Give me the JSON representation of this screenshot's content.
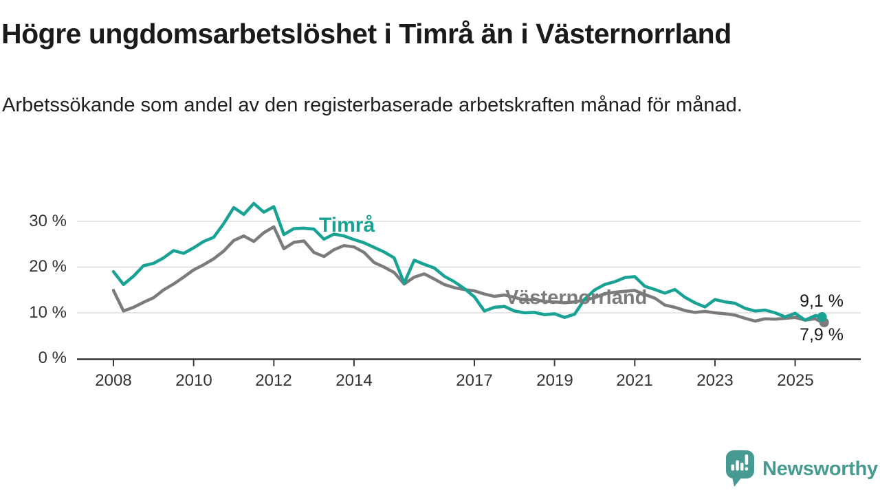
{
  "header": {
    "title": "Högre ungdomsarbetslöshet i Timrå än i Västernorrland",
    "subtitle": "Arbetssökande som andel av den registerbaserade arbetskraften månad för månad."
  },
  "chart_data": {
    "type": "line",
    "title": "Högre ungdomsarbetslöshet i Timrå än i Västernorrland",
    "subtitle": "Arbetssökande som andel av den registerbaserade arbetskraften månad för månad.",
    "xlabel": "",
    "ylabel": "",
    "y_unit": "%",
    "grid": "horizontal",
    "legend_position": "inline-labels",
    "x_range": [
      2007.85,
      2026.1
    ],
    "ylim": [
      0,
      36
    ],
    "y_tick_values": [
      0,
      10,
      20,
      30
    ],
    "y_tick_labels": [
      "0 %",
      "10 %",
      "20 %",
      "30 %"
    ],
    "x_tick_years": [
      2008,
      2010,
      2012,
      2014,
      2017,
      2019,
      2021,
      2023,
      2025
    ],
    "x_tick_labels": [
      "2008",
      "2010",
      "2012",
      "2014",
      "2017",
      "2019",
      "2021",
      "2023",
      "2025"
    ],
    "x": [
      2008.0,
      2008.25,
      2008.5,
      2008.75,
      2009.0,
      2009.25,
      2009.5,
      2009.75,
      2010.0,
      2010.25,
      2010.5,
      2010.75,
      2011.0,
      2011.25,
      2011.5,
      2011.75,
      2012.0,
      2012.25,
      2012.5,
      2012.75,
      2013.0,
      2013.25,
      2013.5,
      2013.75,
      2014.0,
      2014.25,
      2014.5,
      2014.75,
      2015.0,
      2015.25,
      2015.5,
      2015.75,
      2016.0,
      2016.25,
      2016.5,
      2016.75,
      2017.0,
      2017.25,
      2017.5,
      2017.75,
      2018.0,
      2018.25,
      2018.5,
      2018.75,
      2019.0,
      2019.25,
      2019.5,
      2019.75,
      2020.0,
      2020.25,
      2020.5,
      2020.75,
      2021.0,
      2021.25,
      2021.5,
      2021.75,
      2022.0,
      2022.25,
      2022.5,
      2022.75,
      2023.0,
      2023.25,
      2023.5,
      2023.75,
      2024.0,
      2024.25,
      2024.5,
      2024.75,
      2025.0,
      2025.25,
      2025.5,
      2025.67
    ],
    "series": [
      {
        "name": "Timrå",
        "color": "#17a294",
        "end_label": "9,1 %",
        "end_value": 9.1,
        "values": [
          19.0,
          16.2,
          18.0,
          20.3,
          20.8,
          22.0,
          23.6,
          23.0,
          24.2,
          25.6,
          26.5,
          29.5,
          33.0,
          31.5,
          33.9,
          32.0,
          33.2,
          27.1,
          28.4,
          28.5,
          28.3,
          26.1,
          27.2,
          26.8,
          26.0,
          25.3,
          24.3,
          23.3,
          22.0,
          16.5,
          21.5,
          20.6,
          19.8,
          18.0,
          16.8,
          15.3,
          13.5,
          10.4,
          11.2,
          11.4,
          10.4,
          10.0,
          10.1,
          9.6,
          9.8,
          9.0,
          9.7,
          13.0,
          15.0,
          16.2,
          16.8,
          17.7,
          17.9,
          15.8,
          15.1,
          14.3,
          15.1,
          13.4,
          12.2,
          11.3,
          12.9,
          12.4,
          12.1,
          11.0,
          10.4,
          10.6,
          10.0,
          9.1,
          9.9,
          8.4,
          9.4,
          9.1
        ]
      },
      {
        "name": "Västernorrland",
        "color": "#7b7b7b",
        "end_label": "7,9 %",
        "end_value": 7.9,
        "values": [
          14.9,
          10.4,
          11.2,
          12.3,
          13.3,
          15.0,
          16.3,
          17.8,
          19.4,
          20.5,
          21.8,
          23.5,
          25.8,
          26.8,
          25.6,
          27.5,
          28.8,
          24.0,
          25.4,
          25.7,
          23.2,
          22.3,
          23.8,
          24.7,
          24.4,
          23.2,
          21.0,
          20.0,
          18.8,
          16.3,
          17.8,
          18.5,
          17.4,
          16.2,
          15.5,
          15.1,
          14.8,
          14.1,
          13.6,
          13.9,
          13.4,
          12.8,
          12.9,
          12.5,
          12.4,
          12.2,
          12.4,
          12.8,
          13.3,
          14.2,
          14.5,
          14.7,
          14.9,
          14.0,
          13.2,
          11.7,
          11.2,
          10.5,
          10.1,
          10.3,
          10.0,
          9.8,
          9.5,
          8.8,
          8.2,
          8.7,
          8.6,
          8.8,
          9.0,
          8.4,
          8.7,
          7.9
        ]
      }
    ],
    "colors": {
      "timra_line": "#17a294",
      "vasternorrland_line": "#7b7b7b",
      "gridline": "#dcdcdc",
      "axis": "#3a3a3a",
      "text": "#333333",
      "brand_teal": "#479a92"
    }
  },
  "footer": {
    "brand": "Newsworthy"
  }
}
